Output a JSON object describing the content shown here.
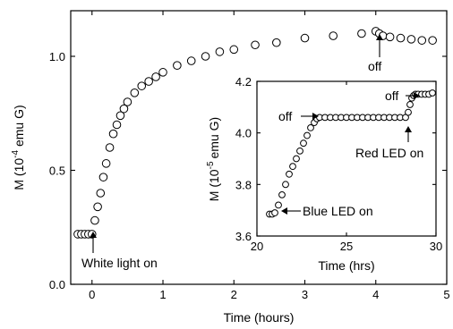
{
  "chart_data": [
    {
      "id": "main",
      "type": "scatter",
      "title": "",
      "xlabel": "Time (hours)",
      "ylabel_prefix": "M (10",
      "ylabel_exp": "-4",
      "ylabel_suffix": " emu G)",
      "xlim": [
        -0.3,
        5.0
      ],
      "ylim": [
        0.0,
        1.2
      ],
      "xticks": [
        0,
        1,
        2,
        3,
        4,
        5
      ],
      "xtick_labels": [
        "0",
        "1",
        "2",
        "3",
        "4",
        "5"
      ],
      "yticks": [
        0.0,
        0.5,
        1.0
      ],
      "ytick_labels": [
        "0.0",
        "0.5",
        "1.0"
      ],
      "marker": "open-circle",
      "x": [
        -0.2,
        -0.15,
        -0.1,
        -0.05,
        0.0,
        0.04,
        0.08,
        0.12,
        0.16,
        0.2,
        0.25,
        0.3,
        0.35,
        0.4,
        0.45,
        0.5,
        0.6,
        0.7,
        0.8,
        0.9,
        1.0,
        1.2,
        1.4,
        1.6,
        1.8,
        2.0,
        2.3,
        2.6,
        3.0,
        3.4,
        3.8,
        4.0,
        4.05,
        4.1,
        4.2,
        4.35,
        4.5,
        4.65,
        4.8
      ],
      "y": [
        0.22,
        0.22,
        0.22,
        0.22,
        0.22,
        0.28,
        0.34,
        0.4,
        0.47,
        0.53,
        0.6,
        0.66,
        0.7,
        0.74,
        0.77,
        0.8,
        0.84,
        0.87,
        0.89,
        0.91,
        0.93,
        0.96,
        0.98,
        1.0,
        1.02,
        1.03,
        1.05,
        1.06,
        1.08,
        1.09,
        1.1,
        1.11,
        1.1,
        1.09,
        1.085,
        1.08,
        1.075,
        1.07,
        1.07
      ],
      "annotations": [
        {
          "text": "White light on",
          "x": 0.0,
          "y": 0.22
        },
        {
          "text": "off",
          "x": 4.0,
          "y": 1.1
        }
      ]
    },
    {
      "id": "inset",
      "type": "scatter",
      "title": "",
      "xlabel": "Time (hrs)",
      "ylabel_prefix": "M (10",
      "ylabel_exp": "-5",
      "ylabel_suffix": "emu G)",
      "xlim": [
        20.0,
        30.0
      ],
      "ylim": [
        3.6,
        4.2
      ],
      "xticks": [
        20,
        25,
        30
      ],
      "xtick_labels": [
        "20",
        "25",
        "30"
      ],
      "yticks": [
        3.6,
        3.8,
        4.0,
        4.2
      ],
      "ytick_labels": [
        "3.6",
        "3.8",
        "4.0",
        "4.2"
      ],
      "marker": "open-circle",
      "x": [
        20.7,
        20.85,
        21.0,
        21.2,
        21.4,
        21.6,
        21.8,
        22.0,
        22.2,
        22.4,
        22.6,
        22.8,
        23.0,
        23.2,
        23.35,
        23.5,
        23.8,
        24.1,
        24.4,
        24.7,
        25.0,
        25.3,
        25.6,
        25.9,
        26.2,
        26.5,
        26.8,
        27.1,
        27.4,
        27.7,
        28.0,
        28.3,
        28.45,
        28.55,
        28.65,
        28.75,
        28.85,
        29.0,
        29.2,
        29.4,
        29.6,
        29.8
      ],
      "y": [
        3.685,
        3.685,
        3.69,
        3.72,
        3.76,
        3.8,
        3.84,
        3.87,
        3.9,
        3.93,
        3.96,
        3.99,
        4.02,
        4.04,
        4.055,
        4.06,
        4.06,
        4.06,
        4.06,
        4.06,
        4.06,
        4.06,
        4.06,
        4.06,
        4.06,
        4.06,
        4.06,
        4.06,
        4.06,
        4.06,
        4.06,
        4.06,
        4.08,
        4.11,
        4.135,
        4.145,
        4.15,
        4.15,
        4.15,
        4.15,
        4.15,
        4.155
      ],
      "annotations": [
        {
          "text": "off",
          "x": 23.4,
          "y": 4.06
        },
        {
          "text": "Blue LED on",
          "x": 21.0,
          "y": 3.69
        },
        {
          "text": "off",
          "x": 28.6,
          "y": 4.15
        },
        {
          "text": "Red LED on",
          "x": 28.4,
          "y": 4.06
        }
      ]
    }
  ]
}
